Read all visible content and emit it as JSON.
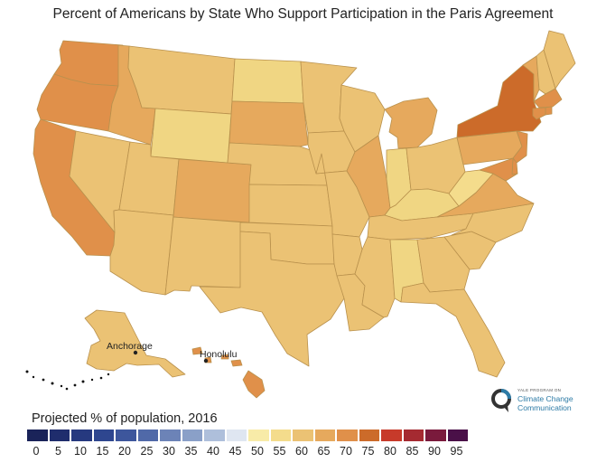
{
  "title": "Percent of Americans by State Who Support Participation in the Paris Agreement",
  "colors": {
    "c50": "#f4dc8c",
    "c55": "#f0d683",
    "c60": "#ebc274",
    "c65": "#e6a95d",
    "c70": "#e0904a",
    "c75": "#cc6b2a",
    "border": "#b9914d"
  },
  "states": [
    {
      "name": "Washington",
      "value": 70
    },
    {
      "name": "Oregon",
      "value": 70
    },
    {
      "name": "California",
      "value": 70
    },
    {
      "name": "Nevada",
      "value": 60
    },
    {
      "name": "Idaho",
      "value": 65
    },
    {
      "name": "Montana",
      "value": 60
    },
    {
      "name": "Wyoming",
      "value": 55
    },
    {
      "name": "Utah",
      "value": 60
    },
    {
      "name": "Arizona",
      "value": 60
    },
    {
      "name": "Colorado",
      "value": 65
    },
    {
      "name": "New Mexico",
      "value": 60
    },
    {
      "name": "North Dakota",
      "value": 55
    },
    {
      "name": "South Dakota",
      "value": 65
    },
    {
      "name": "Nebraska",
      "value": 60
    },
    {
      "name": "Kansas",
      "value": 60
    },
    {
      "name": "Oklahoma",
      "value": 60
    },
    {
      "name": "Texas",
      "value": 60
    },
    {
      "name": "Minnesota",
      "value": 60
    },
    {
      "name": "Iowa",
      "value": 60
    },
    {
      "name": "Missouri",
      "value": 60
    },
    {
      "name": "Arkansas",
      "value": 60
    },
    {
      "name": "Louisiana",
      "value": 60
    },
    {
      "name": "Wisconsin",
      "value": 60
    },
    {
      "name": "Illinois",
      "value": 65
    },
    {
      "name": "Michigan",
      "value": 65
    },
    {
      "name": "Indiana",
      "value": 55
    },
    {
      "name": "Ohio",
      "value": 60
    },
    {
      "name": "Kentucky",
      "value": 55
    },
    {
      "name": "Tennessee",
      "value": 60
    },
    {
      "name": "Mississippi",
      "value": 60
    },
    {
      "name": "Alabama",
      "value": 55
    },
    {
      "name": "Georgia",
      "value": 60
    },
    {
      "name": "Florida",
      "value": 60
    },
    {
      "name": "South Carolina",
      "value": 60
    },
    {
      "name": "North Carolina",
      "value": 60
    },
    {
      "name": "Virginia",
      "value": 65
    },
    {
      "name": "West Virginia",
      "value": 50
    },
    {
      "name": "Pennsylvania",
      "value": 65
    },
    {
      "name": "New York",
      "value": 75
    },
    {
      "name": "Vermont",
      "value": 65
    },
    {
      "name": "New Hampshire",
      "value": 60
    },
    {
      "name": "Maine",
      "value": 60
    },
    {
      "name": "Massachusetts",
      "value": 70
    },
    {
      "name": "Rhode Island",
      "value": 70
    },
    {
      "name": "Connecticut",
      "value": 70
    },
    {
      "name": "New Jersey",
      "value": 70
    },
    {
      "name": "Delaware",
      "value": 70
    },
    {
      "name": "Maryland",
      "value": 70
    },
    {
      "name": "Alaska",
      "value": 60
    },
    {
      "name": "Hawaii",
      "value": 70
    }
  ],
  "labels": {
    "anchorage": "Anchorage",
    "honolulu": "Honolulu"
  },
  "logo": {
    "small": "YALE PROGRAM ON",
    "line1": "Climate Change",
    "line2": "Communication",
    "color": "#2d7ba6"
  },
  "legend": {
    "title": "Projected % of population, 2016",
    "items": [
      {
        "label": "0",
        "color": "#1a2359"
      },
      {
        "label": "5",
        "color": "#1f2d6d"
      },
      {
        "label": "10",
        "color": "#26397f"
      },
      {
        "label": "15",
        "color": "#2e468f"
      },
      {
        "label": "20",
        "color": "#3d569c"
      },
      {
        "label": "25",
        "color": "#5069a8"
      },
      {
        "label": "30",
        "color": "#6c83b7"
      },
      {
        "label": "35",
        "color": "#8aa0c8"
      },
      {
        "label": "40",
        "color": "#aebfdb"
      },
      {
        "label": "45",
        "color": "#dfe6f1"
      },
      {
        "label": "50",
        "color": "#f8eba8"
      },
      {
        "label": "55",
        "color": "#f4dc8c"
      },
      {
        "label": "60",
        "color": "#ebc274"
      },
      {
        "label": "65",
        "color": "#e6a95d"
      },
      {
        "label": "70",
        "color": "#e0904a"
      },
      {
        "label": "75",
        "color": "#cc6b2a"
      },
      {
        "label": "80",
        "color": "#c73a2a"
      },
      {
        "label": "85",
        "color": "#a52a31"
      },
      {
        "label": "90",
        "color": "#7a1a3c"
      },
      {
        "label": "95",
        "color": "#4a1048"
      }
    ]
  }
}
